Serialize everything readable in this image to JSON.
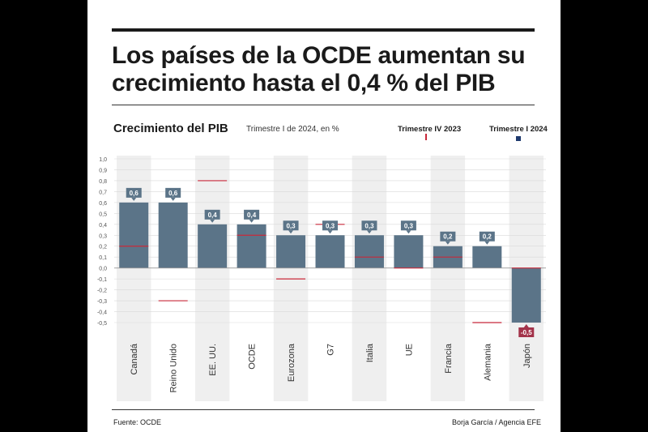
{
  "title": "Los países de la OCDE aumentan su crecimiento hasta el 0,4 % del PIB",
  "chart_title": "Crecimiento del PIB",
  "chart_subtitle": "Trimestre I de 2024, en %",
  "legend": {
    "q4": "Trimestre IV 2023",
    "q1": "Trimestre I 2024"
  },
  "colors": {
    "bar": "#5b7488",
    "bar_negative_label": "#a3334a",
    "previous_marker": "#c8283a",
    "legend_square": "#1f3a6e",
    "band": "#efefef"
  },
  "chart_data": {
    "type": "bar",
    "categories": [
      "Canadá",
      "Reino Unido",
      "EE. UU.",
      "OCDE",
      "Eurozona",
      "G7",
      "Italia",
      "UE",
      "Francia",
      "Alemania",
      "Japón"
    ],
    "series": [
      {
        "name": "Trimestre I 2024",
        "values": [
          0.6,
          0.6,
          0.4,
          0.4,
          0.3,
          0.3,
          0.3,
          0.3,
          0.2,
          0.2,
          -0.5
        ]
      },
      {
        "name": "Trimestre IV 2023",
        "values": [
          0.2,
          -0.3,
          0.8,
          0.3,
          -0.1,
          0.4,
          0.1,
          0.0,
          0.1,
          -0.5,
          0.0
        ]
      }
    ],
    "data_labels": [
      "0,6",
      "0,6",
      "0,4",
      "0,4",
      "0,3",
      "0,3",
      "0,3",
      "0,3",
      "0,2",
      "0,2",
      "-0,5"
    ],
    "yticks": [
      "1,0",
      "0,9",
      "0,8",
      "0,7",
      "0,6",
      "0,5",
      "0,4",
      "0,3",
      "0,2",
      "0,1",
      "0,0",
      "-0,1",
      "-0,2",
      "-0,3",
      "-0,4",
      "-0,5"
    ],
    "ylim": [
      -0.5,
      1.0
    ],
    "grid": true
  },
  "source": "Fuente: OCDE",
  "credit": "Borja García / Agencia EFE"
}
